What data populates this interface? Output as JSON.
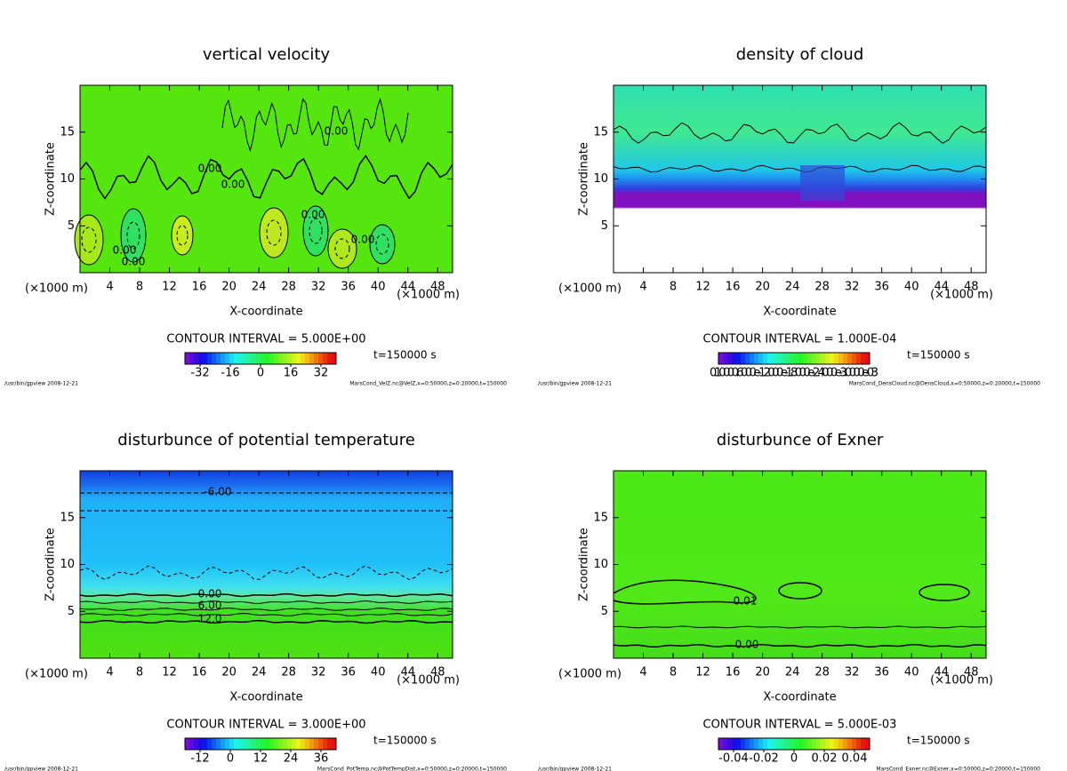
{
  "chart_data": [
    {
      "type": "contour",
      "title": "vertical velocity",
      "xlabel": "X-coordinate",
      "ylabel": "Z-coordinate",
      "x_unit": "(×1000 m)",
      "xlim": [
        0,
        50
      ],
      "ylim": [
        0,
        20
      ],
      "xticks": [
        4,
        8,
        12,
        16,
        20,
        24,
        28,
        32,
        36,
        40,
        44,
        48
      ],
      "yticks": [
        5,
        10,
        15
      ],
      "contour_interval": "CONTOUR INTERVAL = 5.000E+00",
      "time": "t=150000 s",
      "clim": [
        -40,
        40
      ],
      "cticks": [
        -32,
        -16,
        0,
        16,
        32
      ],
      "contour_labels": [
        "0.00",
        "0.00",
        "0.00",
        "0.00",
        "0.00",
        "0.00",
        "0.00"
      ],
      "footer_left": "/usr/bin/gpview  2008-12-21",
      "footer_right": "MarsCond_VelZ.nc@VelZ,x=0:50000,z=0:20000,t=150000"
    },
    {
      "type": "contour",
      "title": "density of cloud",
      "xlabel": "X-coordinate",
      "ylabel": "Z-coordinate",
      "x_unit": "(×1000 m)",
      "xlim": [
        0,
        50
      ],
      "ylim": [
        0,
        20
      ],
      "xticks": [
        4,
        8,
        12,
        16,
        20,
        24,
        28,
        32,
        36,
        40,
        44,
        48
      ],
      "yticks": [
        5,
        10,
        15
      ],
      "contour_interval": "CONTOUR INTERVAL = 1.000E-04",
      "time": "t=150000 s",
      "cbar_text": "0.10000.6000e-1.2000e-1.8000e-2.4000e-3.0000e-03",
      "footer_left": "/usr/bin/gpview  2008-12-21",
      "footer_right": "MarsCond_DensCloud.nc@DensCloud,x=0:50000,z=0:20000,t=150000"
    },
    {
      "type": "contour",
      "title": "disturbunce of potential temperature",
      "xlabel": "X-coordinate",
      "ylabel": "Z-coordinate",
      "x_unit": "(×1000 m)",
      "xlim": [
        0,
        50
      ],
      "ylim": [
        0,
        20
      ],
      "xticks": [
        4,
        8,
        12,
        16,
        20,
        24,
        28,
        32,
        36,
        40,
        44,
        48
      ],
      "yticks": [
        5,
        10,
        15
      ],
      "contour_interval": "CONTOUR INTERVAL = 3.000E+00",
      "time": "t=150000 s",
      "clim": [
        -18,
        42
      ],
      "cticks": [
        -12,
        0,
        12,
        24,
        36
      ],
      "contour_labels": [
        "-6.00",
        "0.00",
        "6.00",
        "12.0"
      ],
      "footer_left": "/usr/bin/gpview  2008-12-21",
      "footer_right": "MarsCond_PotTemp.nc@PotTempDist,x=0:50000,z=0:20000,t=150000"
    },
    {
      "type": "contour",
      "title": "disturbunce of Exner",
      "xlabel": "X-coordinate",
      "ylabel": "Z-coordinate",
      "x_unit": "(×1000 m)",
      "xlim": [
        0,
        50
      ],
      "ylim": [
        0,
        20
      ],
      "xticks": [
        4,
        8,
        12,
        16,
        20,
        24,
        28,
        32,
        36,
        40,
        44,
        48
      ],
      "yticks": [
        5,
        10,
        15
      ],
      "contour_interval": "CONTOUR INTERVAL = 5.000E-03",
      "time": "t=150000 s",
      "clim": [
        -0.05,
        0.05
      ],
      "cticks": [
        -0.04,
        -0.02,
        0,
        0.02,
        0.04
      ],
      "contour_labels": [
        "0.01",
        "0.00"
      ],
      "footer_left": "/usr/bin/gpview  2008-12-21",
      "footer_right": "MarsCond_Exner.nc@Exner,x=0:50000,z=0:20000,t=150000"
    }
  ]
}
